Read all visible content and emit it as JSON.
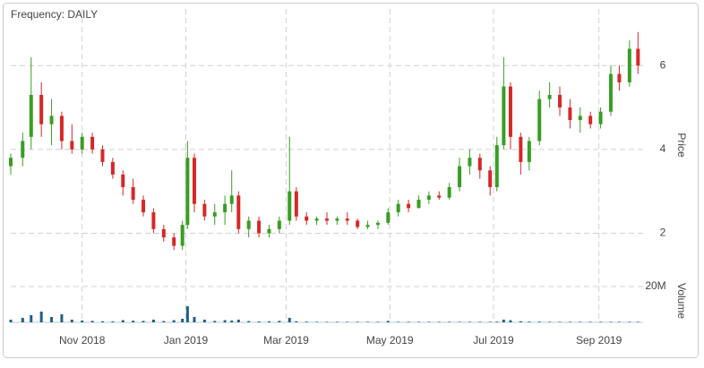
{
  "chart_data": {
    "type": "candlestick",
    "title": "Frequency: DAILY",
    "y_label": "Price",
    "volume_label": "Volume",
    "up_color": "#3a9d23",
    "down_color": "#d62828",
    "volume_color": "#1f5f8b",
    "grid": true,
    "xlim": [
      0,
      372
    ],
    "xticks": [
      {
        "value": 42,
        "label": "Nov 2018"
      },
      {
        "value": 103,
        "label": "Jan 2019"
      },
      {
        "value": 162,
        "label": "Mar 2019"
      },
      {
        "value": 223,
        "label": "May 2019"
      },
      {
        "value": 284,
        "label": "Jul 2019"
      },
      {
        "value": 346,
        "label": "Sep 2019"
      }
    ],
    "ylim": [
      1.05,
      7.35
    ],
    "yticks": [
      2,
      4,
      6
    ],
    "volume_ylim": [
      0,
      25000000
    ],
    "volume_yticks": [
      {
        "value": 20000000,
        "label": "20M"
      }
    ],
    "x": [
      0,
      7,
      12,
      18,
      24,
      30,
      36,
      42,
      48,
      54,
      60,
      66,
      72,
      78,
      84,
      90,
      96,
      101,
      104,
      108,
      114,
      120,
      126,
      130,
      134,
      140,
      146,
      152,
      158,
      164,
      168,
      174,
      180,
      186,
      192,
      198,
      204,
      210,
      216,
      222,
      228,
      234,
      240,
      246,
      252,
      258,
      264,
      270,
      276,
      282,
      286,
      290,
      294,
      300,
      305,
      311,
      317,
      323,
      329,
      335,
      341,
      347,
      353,
      358,
      364,
      369
    ],
    "open": [
      3.6,
      3.8,
      4.3,
      5.3,
      4.6,
      4.8,
      4.2,
      4.0,
      4.3,
      4.0,
      3.7,
      3.4,
      3.1,
      2.8,
      2.5,
      2.1,
      1.9,
      1.7,
      2.2,
      3.8,
      2.7,
      2.4,
      2.5,
      2.7,
      2.9,
      2.1,
      2.3,
      2.0,
      2.1,
      2.3,
      3.0,
      2.4,
      2.3,
      2.35,
      2.3,
      2.35,
      2.3,
      2.15,
      2.2,
      2.25,
      2.5,
      2.7,
      2.6,
      2.8,
      2.9,
      2.85,
      3.1,
      3.6,
      3.8,
      3.5,
      3.1,
      4.1,
      5.5,
      4.3,
      3.7,
      4.2,
      5.2,
      5.3,
      5.0,
      4.7,
      4.8,
      4.6,
      4.9,
      5.8,
      5.6,
      6.4
    ],
    "high": [
      3.9,
      4.4,
      6.2,
      5.6,
      5.2,
      4.9,
      4.6,
      4.4,
      4.4,
      4.1,
      3.8,
      3.5,
      3.3,
      2.9,
      2.6,
      2.2,
      2.0,
      2.3,
      4.2,
      3.9,
      2.8,
      2.7,
      2.9,
      3.5,
      3.0,
      2.4,
      2.4,
      2.2,
      2.4,
      4.3,
      3.1,
      2.5,
      2.4,
      2.5,
      2.4,
      2.5,
      2.35,
      2.3,
      2.3,
      2.6,
      2.8,
      2.8,
      2.9,
      3.0,
      3.0,
      3.2,
      3.8,
      4.0,
      3.9,
      3.6,
      4.3,
      6.2,
      5.6,
      4.4,
      4.3,
      5.4,
      5.6,
      5.5,
      5.2,
      5.0,
      4.9,
      5.0,
      6.0,
      6.0,
      6.6,
      6.8
    ],
    "low": [
      3.4,
      3.6,
      4.0,
      4.3,
      4.1,
      4.0,
      3.9,
      3.9,
      3.9,
      3.6,
      3.3,
      2.9,
      2.7,
      2.4,
      2.0,
      1.8,
      1.6,
      1.6,
      2.1,
      2.5,
      2.3,
      2.2,
      2.2,
      2.5,
      2.0,
      1.9,
      1.9,
      1.9,
      2.0,
      2.2,
      2.3,
      2.2,
      2.2,
      2.2,
      2.2,
      2.2,
      2.1,
      2.1,
      2.1,
      2.2,
      2.4,
      2.5,
      2.6,
      2.7,
      2.8,
      2.8,
      3.0,
      3.4,
      3.3,
      2.9,
      3.0,
      4.0,
      4.0,
      3.4,
      3.5,
      4.1,
      5.0,
      4.8,
      4.5,
      4.4,
      4.5,
      4.5,
      4.8,
      5.4,
      5.5,
      5.8
    ],
    "close": [
      3.8,
      4.2,
      5.3,
      4.6,
      4.8,
      4.2,
      4.0,
      4.3,
      4.0,
      3.7,
      3.4,
      3.1,
      2.8,
      2.5,
      2.1,
      1.9,
      1.7,
      2.2,
      3.8,
      2.7,
      2.4,
      2.5,
      2.7,
      2.9,
      2.1,
      2.3,
      2.0,
      2.1,
      2.3,
      3.0,
      2.4,
      2.3,
      2.35,
      2.3,
      2.35,
      2.3,
      2.15,
      2.2,
      2.25,
      2.5,
      2.7,
      2.6,
      2.8,
      2.9,
      2.85,
      3.1,
      3.6,
      3.8,
      3.5,
      3.1,
      4.1,
      5.5,
      4.3,
      3.7,
      4.2,
      5.2,
      5.3,
      5.0,
      4.7,
      4.8,
      4.6,
      4.9,
      5.8,
      5.6,
      6.4,
      6.0
    ],
    "volume": [
      1500000,
      2500000,
      4000000,
      6000000,
      3000000,
      4500000,
      1500000,
      1000000,
      800000,
      600000,
      500000,
      1200000,
      900000,
      800000,
      1500000,
      700000,
      1200000,
      2000000,
      9000000,
      3000000,
      1500000,
      800000,
      1200000,
      1000000,
      1500000,
      700000,
      500000,
      600000,
      800000,
      2500000,
      600000,
      400000,
      300000,
      300000,
      300000,
      300000,
      300000,
      300000,
      300000,
      800000,
      300000,
      300000,
      300000,
      300000,
      300000,
      300000,
      300000,
      300000,
      300000,
      300000,
      400000,
      1500000,
      1200000,
      600000,
      400000,
      400000,
      300000,
      300000,
      300000,
      300000,
      300000,
      300000,
      300000,
      300000,
      300000,
      300000
    ]
  }
}
